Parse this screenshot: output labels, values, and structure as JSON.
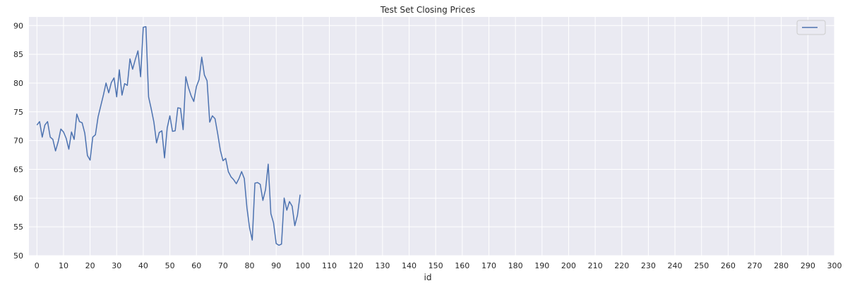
{
  "chart_data": {
    "type": "line",
    "title": "Test Set Closing Prices",
    "xlabel": "id",
    "ylabel": "",
    "xlim": [
      -3,
      300
    ],
    "ylim": [
      50,
      91.5
    ],
    "xticks": [
      0,
      10,
      20,
      30,
      40,
      50,
      60,
      70,
      80,
      90,
      100,
      110,
      120,
      130,
      140,
      150,
      160,
      170,
      180,
      190,
      200,
      210,
      220,
      230,
      240,
      250,
      260,
      270,
      280,
      290,
      300
    ],
    "yticks": [
      50,
      55,
      60,
      65,
      70,
      75,
      80,
      85,
      90
    ],
    "grid": true,
    "legend": "top-right",
    "colors": {
      "background": "#eaeaf2",
      "grid": "#ffffff",
      "line": "#4c72b0"
    },
    "series": [
      {
        "name": "",
        "x": [
          0,
          1,
          2,
          3,
          4,
          5,
          6,
          7,
          8,
          9,
          10,
          11,
          12,
          13,
          14,
          15,
          16,
          17,
          18,
          19,
          20,
          21,
          22,
          23,
          24,
          25,
          26,
          27,
          28,
          29,
          30,
          31,
          32,
          33,
          34,
          35,
          36,
          37,
          38,
          39,
          40,
          41,
          42,
          43,
          44,
          45,
          46,
          47,
          48,
          49,
          50,
          51,
          52,
          53,
          54,
          55,
          56,
          57,
          58,
          59,
          60,
          61,
          62,
          63,
          64,
          65,
          66,
          67,
          68,
          69,
          70,
          71,
          72,
          73,
          74,
          75,
          76,
          77,
          78,
          79,
          80,
          81,
          82,
          83,
          84,
          85,
          86,
          87,
          88,
          89,
          90,
          91,
          92,
          93,
          94,
          95,
          96,
          97,
          98,
          99
        ],
        "values": [
          72.7,
          73.3,
          70.6,
          72.7,
          73.3,
          70.6,
          70.2,
          68.2,
          69.8,
          72.0,
          71.5,
          70.4,
          68.5,
          71.5,
          70.2,
          74.6,
          73.3,
          73.1,
          71.3,
          67.4,
          66.6,
          70.6,
          71.0,
          74.1,
          76.0,
          77.9,
          80.0,
          78.3,
          80.1,
          80.9,
          77.6,
          82.3,
          77.9,
          79.9,
          79.6,
          84.2,
          82.4,
          84.1,
          85.6,
          81.1,
          89.7,
          89.8,
          77.6,
          75.5,
          73.2,
          69.6,
          71.4,
          71.7,
          67.0,
          72.2,
          74.3,
          71.6,
          71.7,
          75.7,
          75.6,
          71.9,
          81.1,
          79.2,
          77.8,
          76.8,
          79.4,
          80.6,
          84.5,
          81.4,
          80.4,
          73.2,
          74.3,
          73.8,
          71.2,
          68.3,
          66.5,
          66.9,
          64.6,
          63.7,
          63.2,
          62.5,
          63.4,
          64.6,
          63.4,
          58.3,
          54.8,
          52.7,
          62.6,
          62.7,
          62.4,
          59.6,
          61.5,
          65.9,
          57.3,
          55.7,
          52.1,
          51.8,
          52.0,
          60.0,
          57.9,
          59.4,
          58.6,
          55.2,
          57.0,
          60.6
        ]
      }
    ]
  }
}
